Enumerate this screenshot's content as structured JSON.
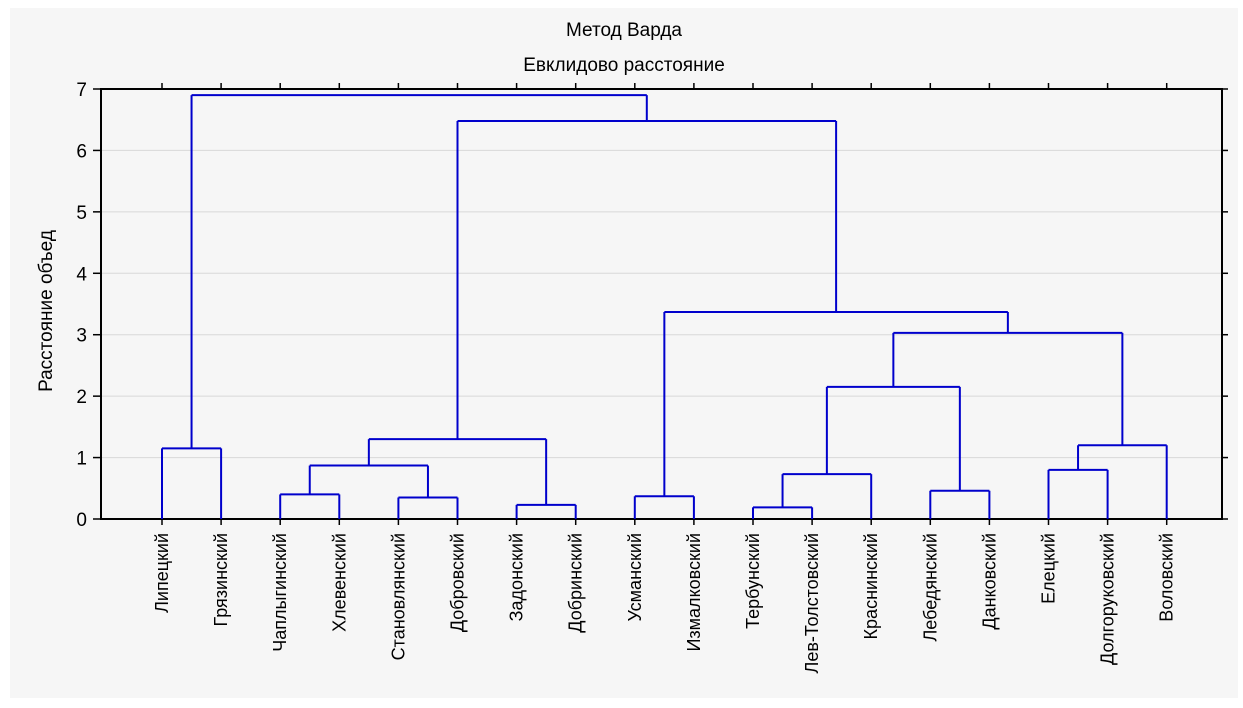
{
  "chart_data": {
    "type": "dendrogram",
    "title": "Метод Варда",
    "subtitle": "Евклидово расстояние",
    "ylabel": "Расстояние объед",
    "ylim": [
      0,
      7
    ],
    "yticks": [
      "0",
      "1",
      "2",
      "3",
      "4",
      "5",
      "6",
      "7"
    ],
    "grid": true,
    "line_color": "#0000cc",
    "leaves": [
      "Липецкий",
      "Грязинский",
      "Чаплыгинский",
      "Хлевенский",
      "Становлянский",
      "Добровский",
      "Задонский",
      "Добринский",
      "Усманский",
      "Измалковский",
      "Тербунский",
      "Лев-Толстовский",
      "Краснинский",
      "Лебедянский",
      "Данковский",
      "Елецкий",
      "Долгоруковский",
      "Воловский"
    ],
    "merges": [
      {
        "left": "Липецкий",
        "right": "Грязинский",
        "height": 1.15
      },
      {
        "left": "Чаплыгинский",
        "right": "Хлевенский",
        "height": 0.4
      },
      {
        "left": "Становлянский",
        "right": "Добровский",
        "height": 0.35
      },
      {
        "left": "Чаплыгинский + Хлевенский",
        "right": "Становлянский + Добровский",
        "height": 0.87
      },
      {
        "left": "Задонский",
        "right": "Добринский",
        "height": 0.23
      },
      {
        "left": "Чаплыгинский … Добровский",
        "right": "Задонский + Добринский",
        "height": 1.3
      },
      {
        "left": "Усманский",
        "right": "Измалковский",
        "height": 0.37
      },
      {
        "left": "Тербунский",
        "right": "Лев-Толстовский",
        "height": 0.19
      },
      {
        "left": "Тербунский + Лев-Толстовский",
        "right": "Краснинский",
        "height": 0.73
      },
      {
        "left": "Лебедянский",
        "right": "Данковский",
        "height": 0.46
      },
      {
        "left": "Тербунский … Краснинский",
        "right": "Лебедянский + Данковский",
        "height": 2.15
      },
      {
        "left": "Елецкий",
        "right": "Долгоруковский",
        "height": 0.8
      },
      {
        "left": "Елецкий + Долгоруковский",
        "right": "Воловский",
        "height": 1.2
      },
      {
        "left": "Тербунский … Данковский",
        "right": "Елецкий … Воловский",
        "height": 3.03
      },
      {
        "left": "Усманский + Измалковский",
        "right": "Тербунский … Воловский",
        "height": 3.37
      },
      {
        "left": "Чаплыгинский … Добринский",
        "right": "Усманский … Воловский",
        "height": 6.48
      },
      {
        "left": "Липецкий + Грязинский",
        "right": "Чаплыгинский … Воловский",
        "height": 6.9
      }
    ]
  }
}
